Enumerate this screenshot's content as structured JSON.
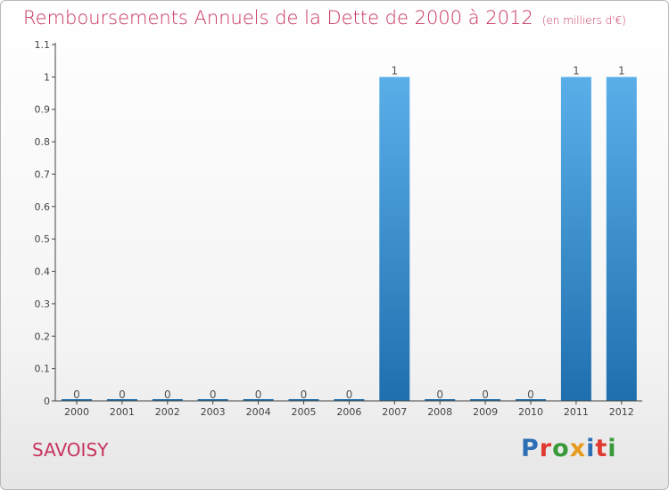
{
  "header": {
    "title": "Remboursements Annuels de la Dette de 2000 à 2012",
    "subtitle": "(en milliers d'€)"
  },
  "footer": {
    "commune": "SAVOISY",
    "logo": [
      "P",
      "r",
      "o",
      "x",
      "i",
      "t",
      "i"
    ]
  },
  "colors": {
    "title": "#c8345c",
    "bar_top": "#5aafe9",
    "bar_bottom": "#1f6fae",
    "axis": "#444444"
  },
  "chart_data": {
    "type": "bar",
    "title": "Remboursements Annuels de la Dette de 2000 à 2012",
    "xlabel": "",
    "ylabel": "",
    "categories": [
      "2000",
      "2001",
      "2002",
      "2003",
      "2004",
      "2005",
      "2006",
      "2007",
      "2008",
      "2009",
      "2010",
      "2011",
      "2012"
    ],
    "values": [
      0,
      0,
      0,
      0,
      0,
      0,
      0,
      1,
      0,
      0,
      0,
      1,
      1
    ],
    "data_labels": [
      "0",
      "0",
      "0",
      "0",
      "0",
      "0",
      "0",
      "1",
      "0",
      "0",
      "0",
      "1",
      "1"
    ],
    "ylim": [
      0,
      1.1
    ],
    "yticks": [
      0,
      0.1,
      0.2,
      0.3,
      0.4,
      0.5,
      0.6,
      0.7,
      0.8,
      0.9,
      1,
      1.1
    ],
    "ytick_labels": [
      "0",
      "0.1",
      "0.2",
      "0.3",
      "0.4",
      "0.5",
      "0.6",
      "0.7",
      "0.8",
      "0.9",
      "1",
      "1.1"
    ],
    "grid": false,
    "legend": "none"
  }
}
